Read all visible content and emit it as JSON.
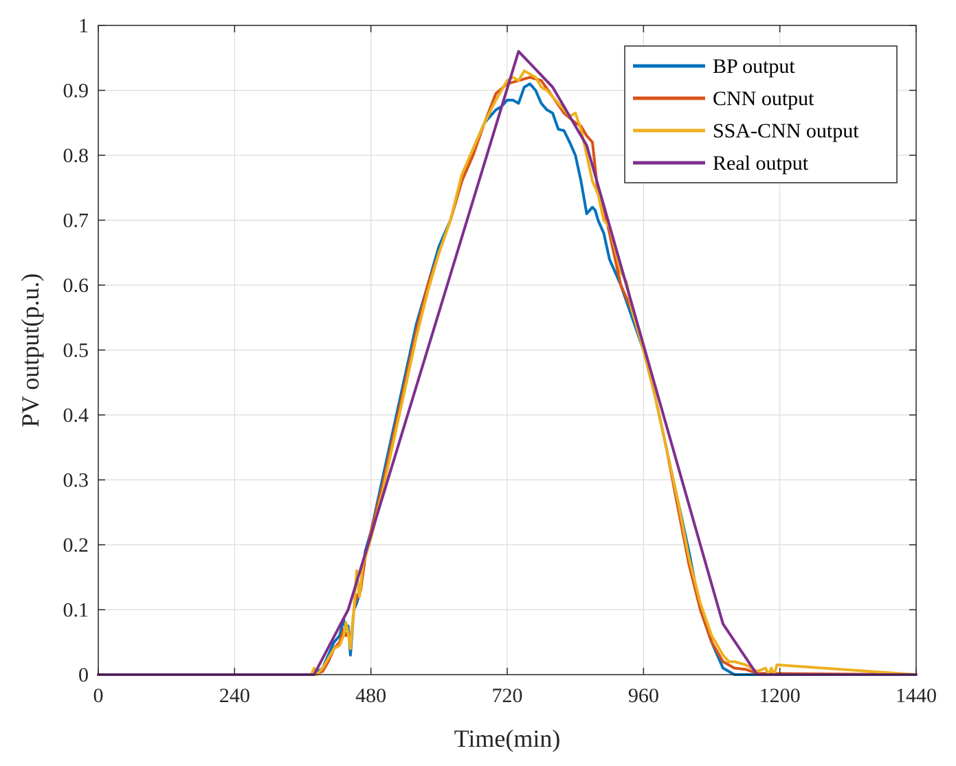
{
  "chart_data": {
    "type": "line",
    "xlabel": "Time(min)",
    "ylabel": "PV output(p.u.)",
    "xlim": [
      0,
      1440
    ],
    "ylim": [
      0,
      1
    ],
    "xticks": [
      "0",
      "240",
      "480",
      "720",
      "960",
      "1200",
      "1440"
    ],
    "xtick_values": [
      0,
      240,
      480,
      720,
      960,
      1200,
      1440
    ],
    "yticks": [
      "0",
      "0.1",
      "0.2",
      "0.3",
      "0.4",
      "0.5",
      "0.6",
      "0.7",
      "0.8",
      "0.9",
      "1"
    ],
    "ytick_values": [
      0,
      0.1,
      0.2,
      0.3,
      0.4,
      0.5,
      0.6,
      0.7,
      0.8,
      0.9,
      1
    ],
    "grid": true,
    "legend_position": "top-right",
    "series": [
      {
        "name": "BP output",
        "color": "#0072BD",
        "x": [
          0,
          380,
          395,
          405,
          415,
          425,
          432,
          436,
          440,
          444,
          450,
          455,
          462,
          470,
          480,
          500,
          520,
          540,
          560,
          580,
          600,
          620,
          640,
          660,
          680,
          690,
          700,
          710,
          720,
          730,
          740,
          750,
          760,
          770,
          780,
          790,
          800,
          810,
          820,
          830,
          840,
          850,
          860,
          870,
          875,
          880,
          890,
          900,
          920,
          940,
          960,
          980,
          1000,
          1020,
          1040,
          1060,
          1080,
          1100,
          1120,
          1140,
          1160,
          1440
        ],
        "y": [
          0,
          0,
          0.01,
          0.03,
          0.05,
          0.06,
          0.085,
          0.07,
          0.075,
          0.03,
          0.1,
          0.11,
          0.13,
          0.19,
          0.22,
          0.3,
          0.38,
          0.46,
          0.54,
          0.6,
          0.66,
          0.7,
          0.76,
          0.81,
          0.85,
          0.86,
          0.87,
          0.875,
          0.885,
          0.885,
          0.88,
          0.905,
          0.91,
          0.9,
          0.88,
          0.87,
          0.865,
          0.84,
          0.838,
          0.82,
          0.8,
          0.76,
          0.71,
          0.72,
          0.715,
          0.7,
          0.68,
          0.64,
          0.6,
          0.55,
          0.5,
          0.43,
          0.35,
          0.27,
          0.19,
          0.1,
          0.05,
          0.01,
          0,
          0,
          0,
          0
        ]
      },
      {
        "name": "CNN output",
        "color": "#D95319",
        "x": [
          0,
          380,
          395,
          405,
          415,
          425,
          432,
          436,
          440,
          444,
          450,
          455,
          462,
          470,
          480,
          500,
          520,
          540,
          560,
          580,
          600,
          620,
          640,
          660,
          680,
          700,
          720,
          740,
          760,
          780,
          800,
          820,
          840,
          850,
          860,
          870,
          880,
          890,
          900,
          920,
          940,
          960,
          980,
          1000,
          1020,
          1040,
          1060,
          1080,
          1100,
          1120,
          1140,
          1150,
          1160,
          1440
        ],
        "y": [
          0,
          0,
          0.005,
          0.02,
          0.04,
          0.05,
          0.07,
          0.06,
          0.065,
          0.045,
          0.1,
          0.12,
          0.13,
          0.18,
          0.22,
          0.29,
          0.37,
          0.45,
          0.53,
          0.6,
          0.65,
          0.7,
          0.76,
          0.8,
          0.85,
          0.895,
          0.91,
          0.915,
          0.92,
          0.915,
          0.89,
          0.865,
          0.85,
          0.845,
          0.83,
          0.82,
          0.74,
          0.72,
          0.68,
          0.6,
          0.56,
          0.5,
          0.43,
          0.35,
          0.26,
          0.17,
          0.1,
          0.05,
          0.02,
          0.01,
          0.008,
          0.005,
          0.002,
          0
        ]
      },
      {
        "name": "SSA-CNN output",
        "color": "#EDB120",
        "x": [
          0,
          375,
          380,
          385,
          395,
          405,
          415,
          425,
          432,
          436,
          440,
          444,
          450,
          455,
          460,
          466,
          470,
          480,
          500,
          520,
          540,
          560,
          580,
          600,
          620,
          640,
          660,
          680,
          700,
          720,
          730,
          740,
          750,
          760,
          770,
          780,
          790,
          800,
          810,
          820,
          830,
          840,
          850,
          860,
          870,
          880,
          890,
          900,
          920,
          930,
          940,
          960,
          980,
          1000,
          1020,
          1040,
          1060,
          1080,
          1100,
          1110,
          1120,
          1140,
          1150,
          1160,
          1175,
          1180,
          1185,
          1190,
          1195,
          1440
        ],
        "y": [
          0,
          0,
          0.01,
          0,
          0.01,
          0.025,
          0.04,
          0.045,
          0.06,
          0.08,
          0.065,
          0.04,
          0.1,
          0.16,
          0.12,
          0.17,
          0.18,
          0.21,
          0.28,
          0.36,
          0.44,
          0.52,
          0.59,
          0.65,
          0.7,
          0.77,
          0.81,
          0.85,
          0.885,
          0.915,
          0.92,
          0.915,
          0.93,
          0.925,
          0.92,
          0.905,
          0.9,
          0.89,
          0.88,
          0.87,
          0.86,
          0.865,
          0.84,
          0.8,
          0.76,
          0.74,
          0.7,
          0.69,
          0.62,
          0.605,
          0.56,
          0.5,
          0.43,
          0.35,
          0.27,
          0.18,
          0.11,
          0.06,
          0.03,
          0.02,
          0.02,
          0.015,
          0.01,
          0.005,
          0.01,
          0,
          0.01,
          0,
          0.015,
          0
        ]
      },
      {
        "name": "Real output",
        "color": "#7E2F8E",
        "x": [
          0,
          380,
          440,
          740,
          800,
          860,
          1060,
          1100,
          1160,
          1440
        ],
        "y": [
          0,
          0,
          0.1,
          0.96,
          0.905,
          0.815,
          0.2,
          0.078,
          0,
          0
        ]
      }
    ]
  }
}
